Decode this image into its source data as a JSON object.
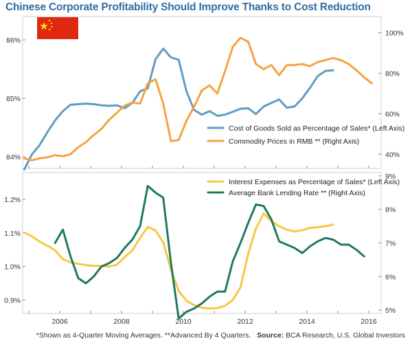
{
  "title": "Chinese Corporate Profitability Should Improve Thanks to Cost Reduction",
  "footnote": {
    "text": "*Shown as 4-Quarter Moving Averages.  **Advanced By 4 Quarters.",
    "source_label": "Source:",
    "source_text": "BCA Research, U.S. Global Investors"
  },
  "colors": {
    "cogs": "#5f9cc4",
    "commodity": "#f4a340",
    "interest": "#f6c842",
    "lending": "#1e7a5a",
    "frame": "#cfcfcf",
    "title": "#2e6da4"
  },
  "icon": "china-flag-icon",
  "chart_data": [
    {
      "type": "line",
      "x_tick_labels": [
        "2006",
        "2008",
        "2010",
        "2012",
        "2014",
        "2016"
      ],
      "xlim": [
        2004.8,
        2016.4
      ],
      "left_axis": {
        "ylim": [
          83.8,
          86.4
        ],
        "ticks": [
          84,
          85,
          86
        ],
        "tick_labels": [
          "84%",
          "85%",
          "86%"
        ]
      },
      "right_axis": {
        "ylim": [
          33,
          108
        ],
        "ticks": [
          40,
          60,
          80,
          100
        ],
        "tick_labels": [
          "40%",
          "60%",
          "80%",
          "100%"
        ]
      },
      "legend_placement": "lower-right",
      "series": [
        {
          "name": "Cost of Goods Sold as Percentage of Sales* (Left Axis)",
          "axis": "left",
          "x": [
            2004.85,
            2005.1,
            2005.35,
            2005.6,
            2005.85,
            2006.1,
            2006.35,
            2006.6,
            2006.85,
            2007.1,
            2007.35,
            2007.6,
            2007.85,
            2008.1,
            2008.35,
            2008.6,
            2008.85,
            2009.1,
            2009.35,
            2009.6,
            2009.85,
            2010.1,
            2010.35,
            2010.6,
            2010.85,
            2011.1,
            2011.35,
            2011.6,
            2011.85,
            2012.1,
            2012.35,
            2012.6,
            2012.85,
            2013.1,
            2013.35,
            2013.6,
            2013.85,
            2014.1,
            2014.35,
            2014.6,
            2014.85
          ],
          "y": [
            83.78,
            84.04,
            84.2,
            84.42,
            84.62,
            84.78,
            84.89,
            84.9,
            84.91,
            84.9,
            84.88,
            84.87,
            84.88,
            84.83,
            84.92,
            85.12,
            85.17,
            85.67,
            85.85,
            85.7,
            85.66,
            85.12,
            84.8,
            84.72,
            84.78,
            84.7,
            84.72,
            84.77,
            84.82,
            84.83,
            84.73,
            84.86,
            84.92,
            84.98,
            84.84,
            84.86,
            85.0,
            85.18,
            85.38,
            85.47,
            85.48
          ]
        },
        {
          "name": "Commodity Prices in RMB ** (Right Axis)",
          "axis": "right",
          "x": [
            2004.85,
            2005.1,
            2005.35,
            2005.6,
            2005.85,
            2006.1,
            2006.35,
            2006.6,
            2006.85,
            2007.1,
            2007.35,
            2007.6,
            2007.85,
            2008.1,
            2008.35,
            2008.6,
            2008.85,
            2009.1,
            2009.35,
            2009.6,
            2009.85,
            2010.1,
            2010.35,
            2010.6,
            2010.85,
            2011.1,
            2011.35,
            2011.6,
            2011.85,
            2012.1,
            2012.35,
            2012.6,
            2012.85,
            2013.1,
            2013.35,
            2013.6,
            2013.85,
            2014.1,
            2014.35,
            2014.6,
            2014.85,
            2015.1,
            2015.35,
            2015.6,
            2015.85,
            2016.1
          ],
          "y": [
            38,
            37,
            38,
            38.5,
            39.5,
            39,
            40,
            43.5,
            46,
            49.5,
            52.5,
            57,
            60.5,
            64,
            65.5,
            65,
            75,
            77,
            65,
            46.5,
            47,
            56.5,
            63.5,
            71.5,
            74,
            70,
            81,
            93,
            97.5,
            95.5,
            84.5,
            82,
            84,
            79,
            84,
            84,
            84.5,
            83.5,
            85.5,
            86.5,
            87.5,
            86.5,
            84.5,
            81.5,
            78,
            75
          ]
        }
      ]
    },
    {
      "type": "line",
      "x_tick_labels": [
        "2006",
        "2008",
        "2010",
        "2012",
        "2014",
        "2016"
      ],
      "xlim": [
        2004.8,
        2016.4
      ],
      "left_axis": {
        "ylim": [
          0.86,
          1.28
        ],
        "ticks": [
          0.9,
          1.0,
          1.1,
          1.2
        ],
        "tick_labels": [
          "0.9%",
          "1.0%",
          "1.1%",
          "1.2%"
        ]
      },
      "right_axis": {
        "ylim": [
          4.9,
          9.1
        ],
        "ticks": [
          5,
          6,
          7,
          8,
          9
        ],
        "tick_labels": [
          "5%",
          "6%",
          "7%",
          "8%",
          "9%"
        ]
      },
      "legend_placement": "top-right",
      "series": [
        {
          "name": "Interest Expenses as Percentage of Sales* (Left Axis)",
          "axis": "left",
          "x": [
            2004.85,
            2005.1,
            2005.35,
            2005.6,
            2005.85,
            2006.1,
            2006.35,
            2006.6,
            2006.85,
            2007.1,
            2007.35,
            2007.6,
            2007.85,
            2008.1,
            2008.35,
            2008.6,
            2008.85,
            2009.1,
            2009.35,
            2009.6,
            2009.85,
            2010.1,
            2010.35,
            2010.6,
            2010.85,
            2011.1,
            2011.35,
            2011.6,
            2011.85,
            2012.1,
            2012.35,
            2012.6,
            2012.85,
            2013.1,
            2013.35,
            2013.6,
            2013.85,
            2014.1,
            2014.35,
            2014.6,
            2014.85
          ],
          "y": [
            1.101,
            1.09,
            1.074,
            1.062,
            1.048,
            1.022,
            1.012,
            1.008,
            1.004,
            1.002,
            1.002,
            1.0,
            1.005,
            1.028,
            1.048,
            1.085,
            1.118,
            1.107,
            1.072,
            0.99,
            0.927,
            0.898,
            0.885,
            0.877,
            0.875,
            0.876,
            0.883,
            0.9,
            0.938,
            1.038,
            1.113,
            1.158,
            1.135,
            1.12,
            1.11,
            1.104,
            1.108,
            1.115,
            1.117,
            1.12,
            1.125
          ]
        },
        {
          "name": "Average Bank Lending Rate ** (Right Axis)",
          "axis": "right",
          "x": [
            2005.85,
            2006.1,
            2006.35,
            2006.6,
            2006.85,
            2007.1,
            2007.35,
            2007.6,
            2007.85,
            2008.1,
            2008.35,
            2008.6,
            2008.85,
            2009.1,
            2009.35,
            2009.6,
            2009.85,
            2010.1,
            2010.35,
            2010.6,
            2010.85,
            2011.1,
            2011.35,
            2011.6,
            2011.85,
            2012.1,
            2012.35,
            2012.6,
            2012.85,
            2013.1,
            2013.35,
            2013.6,
            2013.85,
            2014.1,
            2014.35,
            2014.6,
            2014.85,
            2015.1,
            2015.35,
            2015.6,
            2015.85
          ],
          "y": [
            7.0,
            7.4,
            6.6,
            5.95,
            5.8,
            6.0,
            6.3,
            6.4,
            6.55,
            6.85,
            7.1,
            7.5,
            8.7,
            8.5,
            8.35,
            6.4,
            4.75,
            4.95,
            5.05,
            5.2,
            5.4,
            5.55,
            5.55,
            6.45,
            7.0,
            7.6,
            8.15,
            8.1,
            7.7,
            7.05,
            6.95,
            6.85,
            6.7,
            6.9,
            7.05,
            7.15,
            7.1,
            6.95,
            6.95,
            6.8,
            6.6
          ]
        }
      ]
    }
  ]
}
